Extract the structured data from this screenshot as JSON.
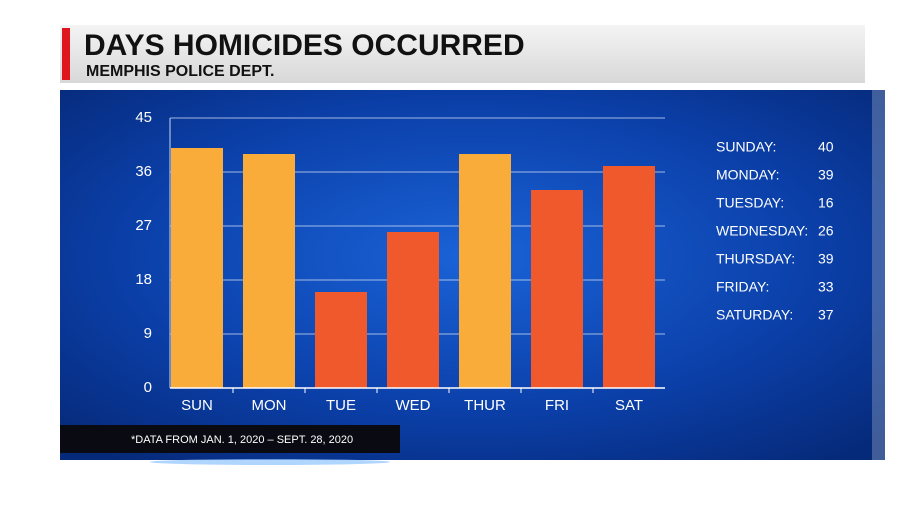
{
  "chart_data": {
    "type": "bar",
    "title": "DAYS HOMICIDES OCCURRED",
    "subtitle": "MEMPHIS POLICE DEPT.",
    "categories": [
      "SUN",
      "MON",
      "TUE",
      "WED",
      "THUR",
      "FRI",
      "SAT"
    ],
    "values": [
      40,
      39,
      16,
      26,
      39,
      33,
      37
    ],
    "colors": [
      "#f9ac3a",
      "#f9ac3a",
      "#f0592b",
      "#f0592b",
      "#f9ac3a",
      "#f0592b",
      "#f0592b"
    ],
    "day_labels": [
      "SUNDAY:",
      "MONDAY:",
      "TUESDAY:",
      "WEDNESDAY:",
      "THURSDAY:",
      "FRIDAY:",
      "SATURDAY:"
    ],
    "ylim": [
      0,
      45
    ],
    "yticks": [
      0,
      9,
      18,
      27,
      36,
      45
    ],
    "grid": true,
    "footnote": "*DATA FROM JAN. 1, 2020 – SEPT. 28, 2020"
  }
}
